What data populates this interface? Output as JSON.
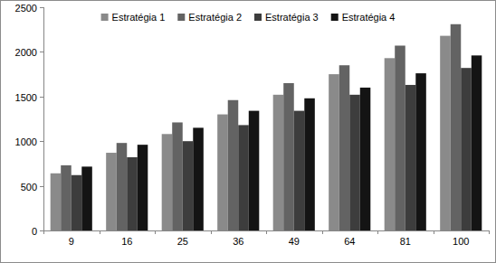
{
  "chart_data": {
    "type": "bar",
    "categories": [
      "9",
      "16",
      "25",
      "36",
      "49",
      "64",
      "81",
      "100"
    ],
    "series": [
      {
        "name": "Estratégia 1",
        "color": "#8a8a8a",
        "values": [
          640,
          870,
          1080,
          1300,
          1520,
          1750,
          1930,
          2180
        ]
      },
      {
        "name": "Estratégia 2",
        "color": "#636363",
        "values": [
          730,
          980,
          1210,
          1460,
          1650,
          1850,
          2070,
          2310
        ]
      },
      {
        "name": "Estratégia 3",
        "color": "#3d3d3d",
        "values": [
          620,
          820,
          1000,
          1180,
          1340,
          1520,
          1630,
          1820
        ]
      },
      {
        "name": "Estratégia 4",
        "color": "#141414",
        "values": [
          715,
          960,
          1150,
          1340,
          1480,
          1600,
          1760,
          1960
        ]
      }
    ],
    "ylim": [
      0,
      2500
    ],
    "yticks": [
      0,
      500,
      1000,
      1500,
      2000,
      2500
    ],
    "grid": false,
    "legend": "top"
  }
}
